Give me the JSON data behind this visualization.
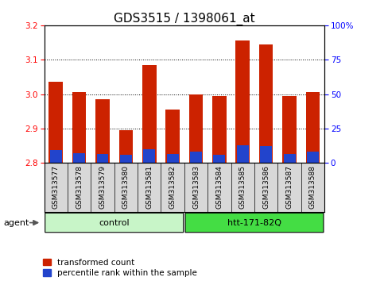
{
  "title": "GDS3515 / 1398061_at",
  "categories": [
    "GSM313577",
    "GSM313578",
    "GSM313579",
    "GSM313580",
    "GSM313581",
    "GSM313582",
    "GSM313583",
    "GSM313584",
    "GSM313585",
    "GSM313586",
    "GSM313587",
    "GSM313588"
  ],
  "red_values": [
    3.035,
    3.005,
    2.985,
    2.895,
    3.085,
    2.955,
    3.0,
    2.995,
    3.155,
    3.145,
    2.995,
    3.005
  ],
  "blue_values": [
    2.838,
    2.828,
    2.826,
    2.824,
    2.84,
    2.825,
    2.832,
    2.823,
    2.852,
    2.85,
    2.825,
    2.832
  ],
  "baseline": 2.8,
  "ylim_left": [
    2.8,
    3.2
  ],
  "ylim_right": [
    0,
    100
  ],
  "yticks_left": [
    2.8,
    2.9,
    3.0,
    3.1,
    3.2
  ],
  "yticks_right": [
    0,
    25,
    50,
    75,
    100
  ],
  "ytick_labels_right": [
    "0",
    "25",
    "50",
    "75",
    "100%"
  ],
  "groups": [
    {
      "label": "control",
      "start": 0,
      "end": 5,
      "color": "#c8f5c8"
    },
    {
      "label": "htt-171-82Q",
      "start": 6,
      "end": 11,
      "color": "#44dd44"
    }
  ],
  "bar_color": "#cc2200",
  "blue_color": "#2244cc",
  "plot_bg": "#ffffff",
  "tick_bg": "#d8d8d8",
  "title_fontsize": 11,
  "tick_fontsize": 7.5,
  "legend_items": [
    "transformed count",
    "percentile rank within the sample"
  ],
  "agent_label": "agent",
  "bar_width": 0.6
}
